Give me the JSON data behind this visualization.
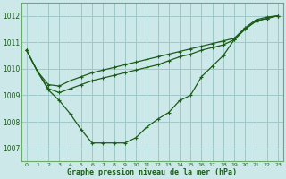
{
  "title": "Graphe pression niveau de la mer (hPa)",
  "bg_color": "#cce8e8",
  "grid_color": "#9ec8c8",
  "line_color": "#1a5c1a",
  "xlim": [
    -0.5,
    23.5
  ],
  "ylim": [
    1006.5,
    1012.5
  ],
  "yticks": [
    1007,
    1008,
    1009,
    1010,
    1011,
    1012
  ],
  "xticks": [
    0,
    1,
    2,
    3,
    4,
    5,
    6,
    7,
    8,
    9,
    10,
    11,
    12,
    13,
    14,
    15,
    16,
    17,
    18,
    19,
    20,
    21,
    22,
    23
  ],
  "series": {
    "s1_main_dip": [
      1010.7,
      1009.9,
      1009.2,
      1008.8,
      1008.3,
      1007.7,
      1007.2,
      1007.2,
      1007.2,
      1007.2,
      1007.4,
      1007.8,
      1008.1,
      1008.35,
      1008.8,
      1009.0,
      1009.7,
      1010.1,
      1010.5,
      1011.1,
      1011.5,
      1011.8,
      1011.9,
      1012.0
    ],
    "s2_upper_line": [
      1010.7,
      1009.9,
      1009.4,
      1009.35,
      1009.55,
      1009.7,
      1009.85,
      1009.95,
      1010.05,
      1010.15,
      1010.25,
      1010.35,
      1010.45,
      1010.55,
      1010.65,
      1010.75,
      1010.85,
      1010.95,
      1011.05,
      1011.15,
      1011.55,
      1011.85,
      1011.95,
      1012.0
    ],
    "s3_mid_line": [
      1010.7,
      1009.9,
      1009.25,
      1009.1,
      1009.25,
      1009.4,
      1009.55,
      1009.65,
      1009.75,
      1009.85,
      1009.95,
      1010.05,
      1010.15,
      1010.3,
      1010.45,
      1010.55,
      1010.7,
      1010.8,
      1010.9,
      1011.1,
      1011.5,
      1011.8,
      1011.9,
      1012.0
    ]
  }
}
